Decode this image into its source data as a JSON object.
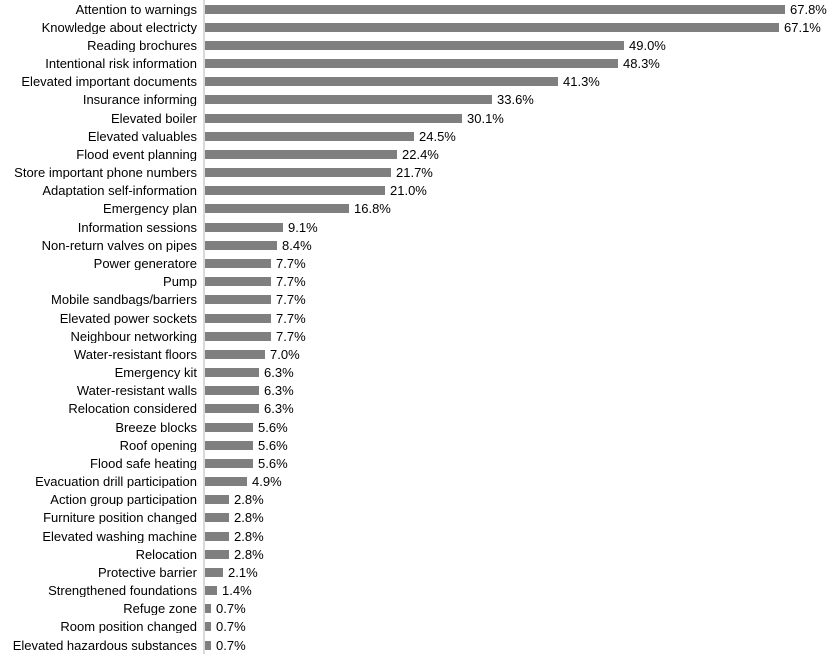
{
  "chart_data": {
    "type": "bar",
    "orientation": "horizontal",
    "title": "",
    "xlabel": "",
    "ylabel": "",
    "xlim": [
      0,
      73
    ],
    "grid": false,
    "legend": "none",
    "bar_color": "#7f7f7f",
    "axis_line_color": "#d9d9d9",
    "text_color": "#000000",
    "categories": [
      "Attention to warnings",
      "Knowledge about electricty",
      "Reading brochures",
      "Intentional risk information",
      "Elevated important documents",
      "Insurance informing",
      "Elevated boiler",
      "Elevated valuables",
      "Flood event planning",
      "Store important phone numbers",
      "Adaptation self-information",
      "Emergency plan",
      "Information sessions",
      "Non-return valves on pipes",
      "Power generatore",
      "Pump",
      "Mobile sandbags/barriers",
      "Elevated power sockets",
      "Neighbour networking",
      "Water-resistant floors",
      "Emergency kit",
      "Water-resistant walls",
      "Relocation considered",
      "Breeze blocks",
      "Roof opening",
      "Flood safe heating",
      "Evacuation drill participation",
      "Action group participation",
      "Furniture position changed",
      "Elevated washing machine",
      "Relocation",
      "Protective barrier",
      "Strengthened foundations",
      "Refuge zone",
      "Room position changed",
      "Elevated hazardous substances"
    ],
    "values": [
      67.8,
      67.1,
      49.0,
      48.3,
      41.3,
      33.6,
      30.1,
      24.5,
      22.4,
      21.7,
      21.0,
      16.8,
      9.1,
      8.4,
      7.7,
      7.7,
      7.7,
      7.7,
      7.7,
      7.0,
      6.3,
      6.3,
      6.3,
      5.6,
      5.6,
      5.6,
      4.9,
      2.8,
      2.8,
      2.8,
      2.8,
      2.1,
      1.4,
      0.7,
      0.7,
      0.7
    ],
    "value_labels": [
      "67.8%",
      "67.1%",
      "49.0%",
      "48.3%",
      "41.3%",
      "33.6%",
      "30.1%",
      "24.5%",
      "22.4%",
      "21.7%",
      "21.0%",
      "16.8%",
      "9.1%",
      "8.4%",
      "7.7%",
      "7.7%",
      "7.7%",
      "7.7%",
      "7.7%",
      "7.0%",
      "6.3%",
      "6.3%",
      "6.3%",
      "5.6%",
      "5.6%",
      "5.6%",
      "4.9%",
      "2.8%",
      "2.8%",
      "2.8%",
      "2.8%",
      "2.1%",
      "1.4%",
      "0.7%",
      "0.7%",
      "0.7%"
    ]
  }
}
